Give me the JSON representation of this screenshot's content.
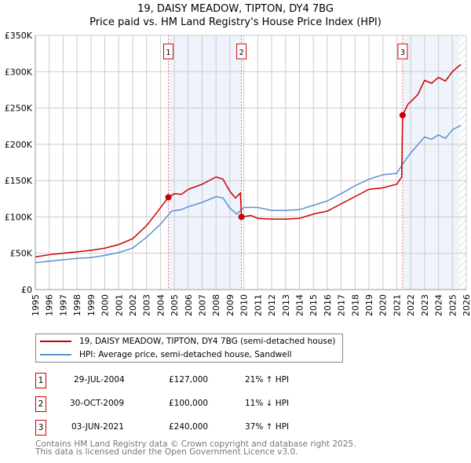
{
  "chart_data": {
    "type": "line",
    "title": "19, DAISY MEADOW, TIPTON, DY4 7BG",
    "subtitle": "Price paid vs. HM Land Registry's House Price Index (HPI)",
    "xlim": [
      1995,
      2026
    ],
    "ylim": [
      0,
      350000
    ],
    "yticks": [
      {
        "v": 0,
        "label": "£0"
      },
      {
        "v": 50000,
        "label": "£50K"
      },
      {
        "v": 100000,
        "label": "£100K"
      },
      {
        "v": 150000,
        "label": "£150K"
      },
      {
        "v": 200000,
        "label": "£200K"
      },
      {
        "v": 250000,
        "label": "£250K"
      },
      {
        "v": 300000,
        "label": "£300K"
      },
      {
        "v": 350000,
        "label": "£350K"
      }
    ],
    "xticks": [
      "1995",
      "1996",
      "1997",
      "1998",
      "1999",
      "2000",
      "2001",
      "2002",
      "2003",
      "2004",
      "2005",
      "2006",
      "2007",
      "2008",
      "2009",
      "2010",
      "2011",
      "2012",
      "2013",
      "2014",
      "2015",
      "2016",
      "2017",
      "2018",
      "2019",
      "2020",
      "2021",
      "2022",
      "2023",
      "2024",
      "2025",
      "2026"
    ],
    "grid": true,
    "series": [
      {
        "name": "19, DAISY MEADOW, TIPTON, DY4 7BG (semi-detached house)",
        "color": "#cc0000",
        "points": [
          [
            1995,
            45000
          ],
          [
            1996,
            48000
          ],
          [
            1997,
            50000
          ],
          [
            1998,
            52000
          ],
          [
            1999,
            54000
          ],
          [
            2000,
            57000
          ],
          [
            2001,
            62000
          ],
          [
            2002,
            70000
          ],
          [
            2003,
            88000
          ],
          [
            2003.7,
            105000
          ],
          [
            2004.57,
            127000
          ],
          [
            2005,
            132000
          ],
          [
            2005.5,
            131000
          ],
          [
            2006,
            138000
          ],
          [
            2007,
            145000
          ],
          [
            2007.5,
            150000
          ],
          [
            2008,
            155000
          ],
          [
            2008.5,
            152000
          ],
          [
            2009,
            135000
          ],
          [
            2009.4,
            126000
          ],
          [
            2009.75,
            133000
          ],
          [
            2009.83,
            100000
          ],
          [
            2010.5,
            102000
          ],
          [
            2011,
            98000
          ],
          [
            2012,
            97000
          ],
          [
            2013,
            97000
          ],
          [
            2014,
            98000
          ],
          [
            2015,
            104000
          ],
          [
            2016,
            108000
          ],
          [
            2017,
            118000
          ],
          [
            2018,
            128000
          ],
          [
            2019,
            138000
          ],
          [
            2020,
            140000
          ],
          [
            2021,
            145000
          ],
          [
            2021.35,
            155000
          ],
          [
            2021.42,
            240000
          ],
          [
            2021.8,
            255000
          ],
          [
            2022.5,
            268000
          ],
          [
            2023,
            288000
          ],
          [
            2023.5,
            284000
          ],
          [
            2024,
            292000
          ],
          [
            2024.5,
            287000
          ],
          [
            2025,
            300000
          ],
          [
            2025.6,
            310000
          ]
        ]
      },
      {
        "name": "HPI: Average price, semi-detached house, Sandwell",
        "color": "#5b8fd4",
        "points": [
          [
            1995,
            37000
          ],
          [
            1996,
            39000
          ],
          [
            1997,
            41000
          ],
          [
            1998,
            43000
          ],
          [
            1999,
            44000
          ],
          [
            2000,
            47000
          ],
          [
            2001,
            51000
          ],
          [
            2002,
            57000
          ],
          [
            2003,
            72000
          ],
          [
            2004,
            90000
          ],
          [
            2004.8,
            108000
          ],
          [
            2005.5,
            110000
          ],
          [
            2006,
            114000
          ],
          [
            2007,
            120000
          ],
          [
            2008,
            128000
          ],
          [
            2008.5,
            126000
          ],
          [
            2009,
            112000
          ],
          [
            2009.5,
            104000
          ],
          [
            2010,
            113000
          ],
          [
            2011,
            113000
          ],
          [
            2012,
            109000
          ],
          [
            2013,
            109000
          ],
          [
            2014,
            110000
          ],
          [
            2015,
            116000
          ],
          [
            2016,
            122000
          ],
          [
            2017,
            132000
          ],
          [
            2018,
            143000
          ],
          [
            2019,
            152000
          ],
          [
            2020,
            158000
          ],
          [
            2021,
            160000
          ],
          [
            2021.5,
            175000
          ],
          [
            2022,
            188000
          ],
          [
            2023,
            210000
          ],
          [
            2023.5,
            207000
          ],
          [
            2024,
            213000
          ],
          [
            2024.5,
            208000
          ],
          [
            2025,
            220000
          ],
          [
            2025.6,
            226000
          ]
        ]
      }
    ],
    "sales": [
      {
        "id": "1",
        "x": 2004.57,
        "y": 127000,
        "date": "29-JUL-2004",
        "price": "£127,000",
        "hpi": "21% ↑ HPI"
      },
      {
        "id": "2",
        "x": 2009.83,
        "y": 100000,
        "date": "30-OCT-2009",
        "price": "£100,000",
        "hpi": "11% ↓ HPI"
      },
      {
        "id": "3",
        "x": 2021.42,
        "y": 240000,
        "date": "03-JUN-2021",
        "price": "£240,000",
        "hpi": "37% ↑ HPI"
      }
    ],
    "shaded": [
      [
        2004.57,
        2009.83
      ],
      [
        2021.42,
        2025.5
      ]
    ],
    "hatched_from": 2025.5
  },
  "footer": [
    "Contains HM Land Registry data © Crown copyright and database right 2025.",
    "This data is licensed under the Open Government Licence v3.0."
  ]
}
